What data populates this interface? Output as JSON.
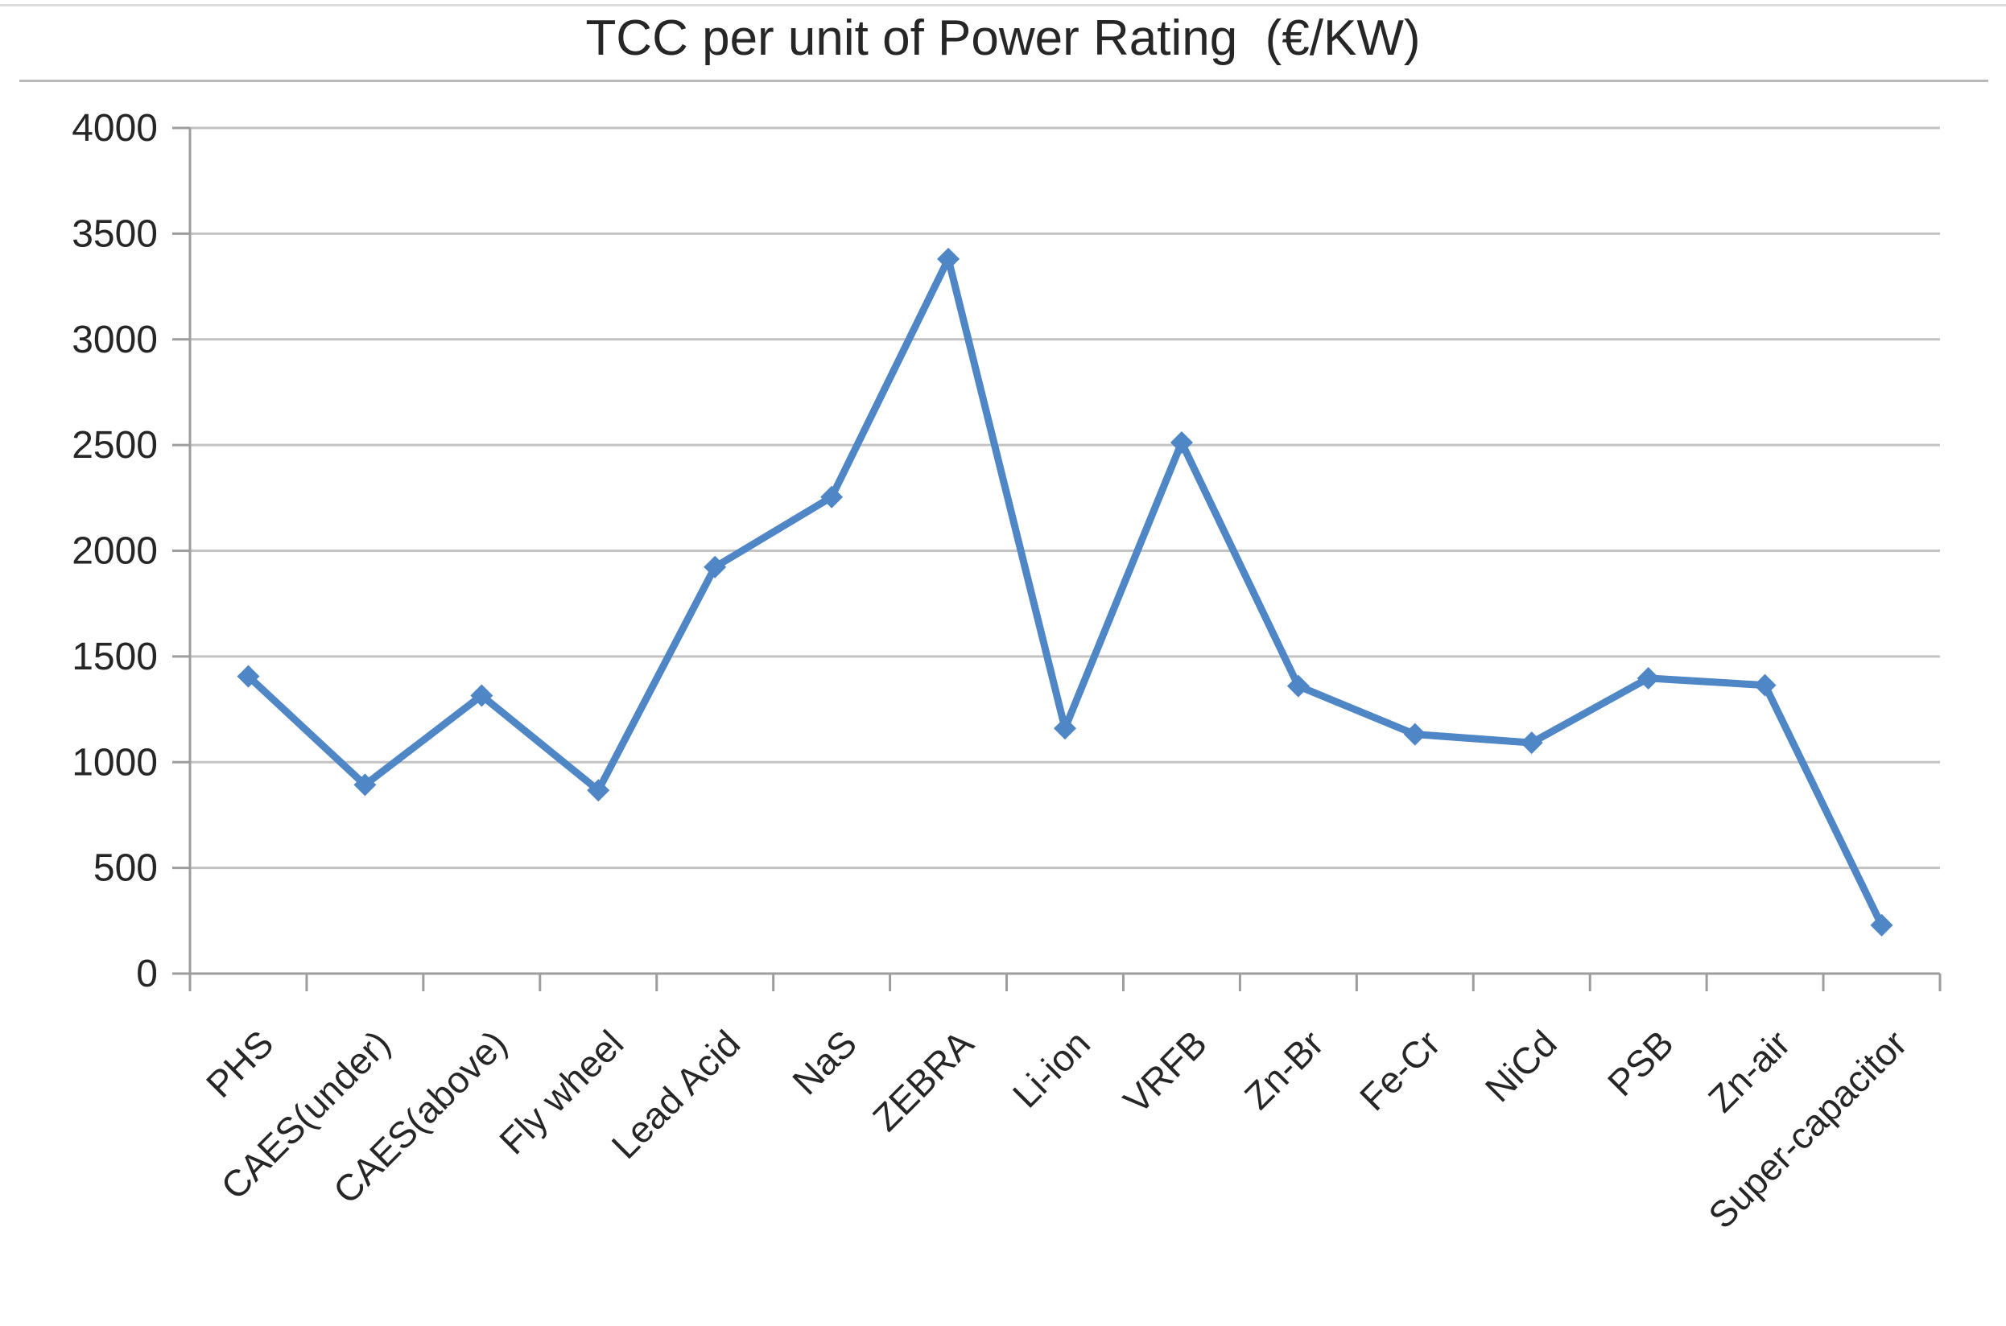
{
  "page": {
    "background": "#ffffff"
  },
  "chart_data": {
    "type": "line",
    "title": "TCC per unit of Power Rating  (€/KW)",
    "categories": [
      "PHS",
      "CAES(under)",
      "CAES(above)",
      "Fly wheel",
      "Lead Acid",
      "NaS",
      "ZEBRA",
      "Li-ion",
      "VRFB",
      "Zn-Br",
      "Fe-Cr",
      "NiCd",
      "PSB",
      "Zn-air",
      "Super-capacitor"
    ],
    "series": [
      {
        "name": "TCC per unit of Power Rating (€/KW)",
        "values": [
          1406,
          893,
          1315,
          867,
          1923,
          2254,
          3380,
          1160,
          2512,
          1360,
          1132,
          1092,
          1397,
          1364,
          229
        ]
      }
    ],
    "xlabel": "",
    "ylabel": "",
    "ylim": [
      0,
      4000
    ],
    "ytick_step": 500,
    "ytick_labels": [
      "0",
      "500",
      "1000",
      "1500",
      "2000",
      "2500",
      "3000",
      "3500",
      "4000"
    ],
    "grid": true,
    "legend": "none",
    "marker": "diamond",
    "colors": {
      "line": "#4e86c6",
      "marker": "#4e86c6",
      "gridline": "#c3c3c3",
      "axis": "#9d9d9d",
      "text": "#262626",
      "title_rule": "#b9b9b9"
    }
  }
}
